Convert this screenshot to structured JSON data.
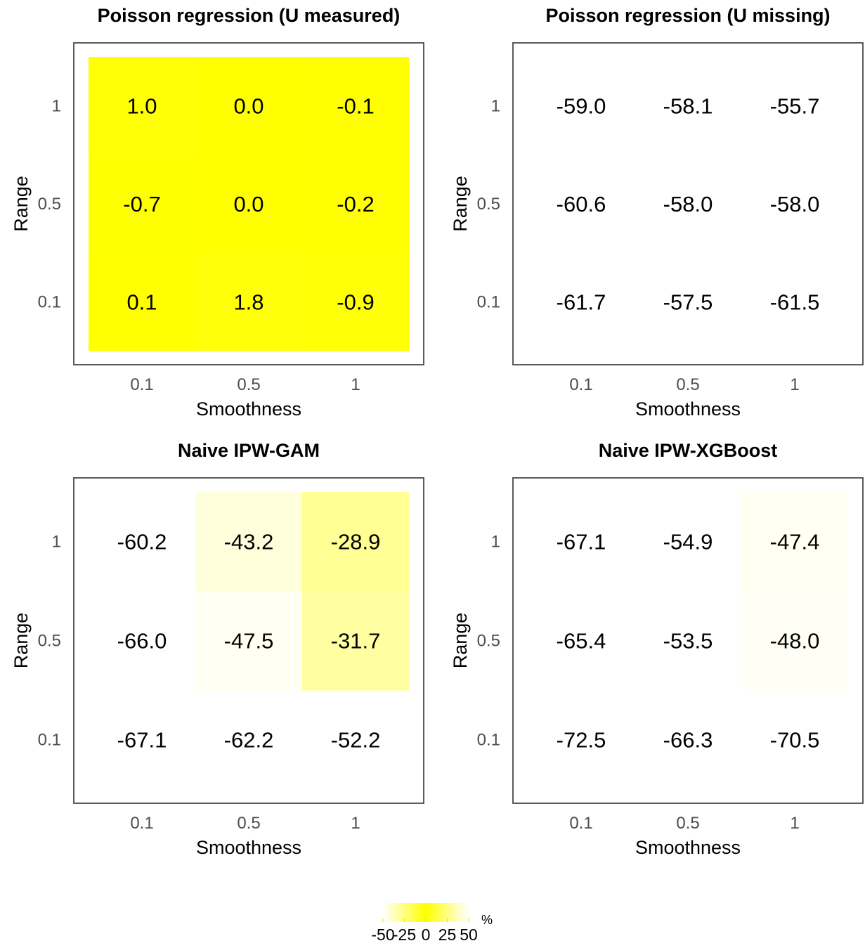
{
  "chart_data": [
    {
      "type": "heatmap",
      "title": "Poisson regression (U measured)",
      "xlabel": "Smoothness",
      "ylabel": "Range",
      "x_categories": [
        "0.1",
        "0.5",
        "1"
      ],
      "y_categories": [
        "0.1",
        "0.5",
        "1"
      ],
      "cells": [
        {
          "x": "0.1",
          "y": "1",
          "value": 1.0,
          "label": "1.0",
          "shown": true
        },
        {
          "x": "0.5",
          "y": "1",
          "value": 0.0,
          "label": "0.0",
          "shown": true
        },
        {
          "x": "1",
          "y": "1",
          "value": -0.1,
          "label": "-0.1",
          "shown": true
        },
        {
          "x": "0.1",
          "y": "0.5",
          "value": -0.7,
          "label": "-0.7",
          "shown": true
        },
        {
          "x": "0.5",
          "y": "0.5",
          "value": 0.0,
          "label": "0.0",
          "shown": true
        },
        {
          "x": "1",
          "y": "0.5",
          "value": -0.2,
          "label": "-0.2",
          "shown": true
        },
        {
          "x": "0.1",
          "y": "0.1",
          "value": 0.1,
          "label": "0.1",
          "shown": true
        },
        {
          "x": "0.5",
          "y": "0.1",
          "value": 1.8,
          "label": "1.8",
          "shown": true
        },
        {
          "x": "1",
          "y": "0.1",
          "value": -0.9,
          "label": "-0.9",
          "shown": true
        }
      ]
    },
    {
      "type": "heatmap",
      "title": "Poisson regression (U missing)",
      "xlabel": "Smoothness",
      "ylabel": "Range",
      "x_categories": [
        "0.1",
        "0.5",
        "1"
      ],
      "y_categories": [
        "0.1",
        "0.5",
        "1"
      ],
      "cells": [
        {
          "x": "0.1",
          "y": "1",
          "value": -59.0,
          "label": "-59.0",
          "shown": false
        },
        {
          "x": "0.5",
          "y": "1",
          "value": -58.1,
          "label": "-58.1",
          "shown": false
        },
        {
          "x": "1",
          "y": "1",
          "value": -55.7,
          "label": "-55.7",
          "shown": false
        },
        {
          "x": "0.1",
          "y": "0.5",
          "value": -60.6,
          "label": "-60.6",
          "shown": false
        },
        {
          "x": "0.5",
          "y": "0.5",
          "value": -58.0,
          "label": "-58.0",
          "shown": false
        },
        {
          "x": "1",
          "y": "0.5",
          "value": -58.0,
          "label": "-58.0",
          "shown": false
        },
        {
          "x": "0.1",
          "y": "0.1",
          "value": -61.7,
          "label": "-61.7",
          "shown": false
        },
        {
          "x": "0.5",
          "y": "0.1",
          "value": -57.5,
          "label": "-57.5",
          "shown": false
        },
        {
          "x": "1",
          "y": "0.1",
          "value": -61.5,
          "label": "-61.5",
          "shown": false
        }
      ]
    },
    {
      "type": "heatmap",
      "title": "Naive IPW-GAM",
      "xlabel": "Smoothness",
      "ylabel": "Range",
      "x_categories": [
        "0.1",
        "0.5",
        "1"
      ],
      "y_categories": [
        "0.1",
        "0.5",
        "1"
      ],
      "cells": [
        {
          "x": "0.1",
          "y": "1",
          "value": -60.2,
          "label": "-60.2",
          "shown": false
        },
        {
          "x": "0.5",
          "y": "1",
          "value": -43.2,
          "label": "-43.2",
          "shown": true
        },
        {
          "x": "1",
          "y": "1",
          "value": -28.9,
          "label": "-28.9",
          "shown": true
        },
        {
          "x": "0.1",
          "y": "0.5",
          "value": -66.0,
          "label": "-66.0",
          "shown": false
        },
        {
          "x": "0.5",
          "y": "0.5",
          "value": -47.5,
          "label": "-47.5",
          "shown": true
        },
        {
          "x": "1",
          "y": "0.5",
          "value": -31.7,
          "label": "-31.7",
          "shown": true
        },
        {
          "x": "0.1",
          "y": "0.1",
          "value": -67.1,
          "label": "-67.1",
          "shown": false
        },
        {
          "x": "0.5",
          "y": "0.1",
          "value": -62.2,
          "label": "-62.2",
          "shown": false
        },
        {
          "x": "1",
          "y": "0.1",
          "value": -52.2,
          "label": "-52.2",
          "shown": false
        }
      ]
    },
    {
      "type": "heatmap",
      "title": "Naive IPW-XGBoost",
      "xlabel": "Smoothness",
      "ylabel": "Range",
      "x_categories": [
        "0.1",
        "0.5",
        "1"
      ],
      "y_categories": [
        "0.1",
        "0.5",
        "1"
      ],
      "cells": [
        {
          "x": "0.1",
          "y": "1",
          "value": -67.1,
          "label": "-67.1",
          "shown": false
        },
        {
          "x": "0.5",
          "y": "1",
          "value": -54.9,
          "label": "-54.9",
          "shown": false
        },
        {
          "x": "1",
          "y": "1",
          "value": -47.4,
          "label": "-47.4",
          "shown": true
        },
        {
          "x": "0.1",
          "y": "0.5",
          "value": -65.4,
          "label": "-65.4",
          "shown": false
        },
        {
          "x": "0.5",
          "y": "0.5",
          "value": -53.5,
          "label": "-53.5",
          "shown": false
        },
        {
          "x": "1",
          "y": "0.5",
          "value": -48.0,
          "label": "-48.0",
          "shown": true
        },
        {
          "x": "0.1",
          "y": "0.1",
          "value": -72.5,
          "label": "-72.5",
          "shown": false
        },
        {
          "x": "0.5",
          "y": "0.1",
          "value": -66.3,
          "label": "-66.3",
          "shown": false
        },
        {
          "x": "1",
          "y": "0.1",
          "value": -70.5,
          "label": "-70.5",
          "shown": false
        }
      ]
    }
  ],
  "legend": {
    "unit": "%",
    "ticks": [
      "-50",
      "-25",
      "0",
      "25",
      "50"
    ],
    "tick_values": [
      -50,
      -25,
      0,
      25,
      50
    ],
    "range": [
      -50,
      50
    ],
    "high_color": "#ffff00",
    "low_color": "#ffffff",
    "placement": "bottom"
  }
}
